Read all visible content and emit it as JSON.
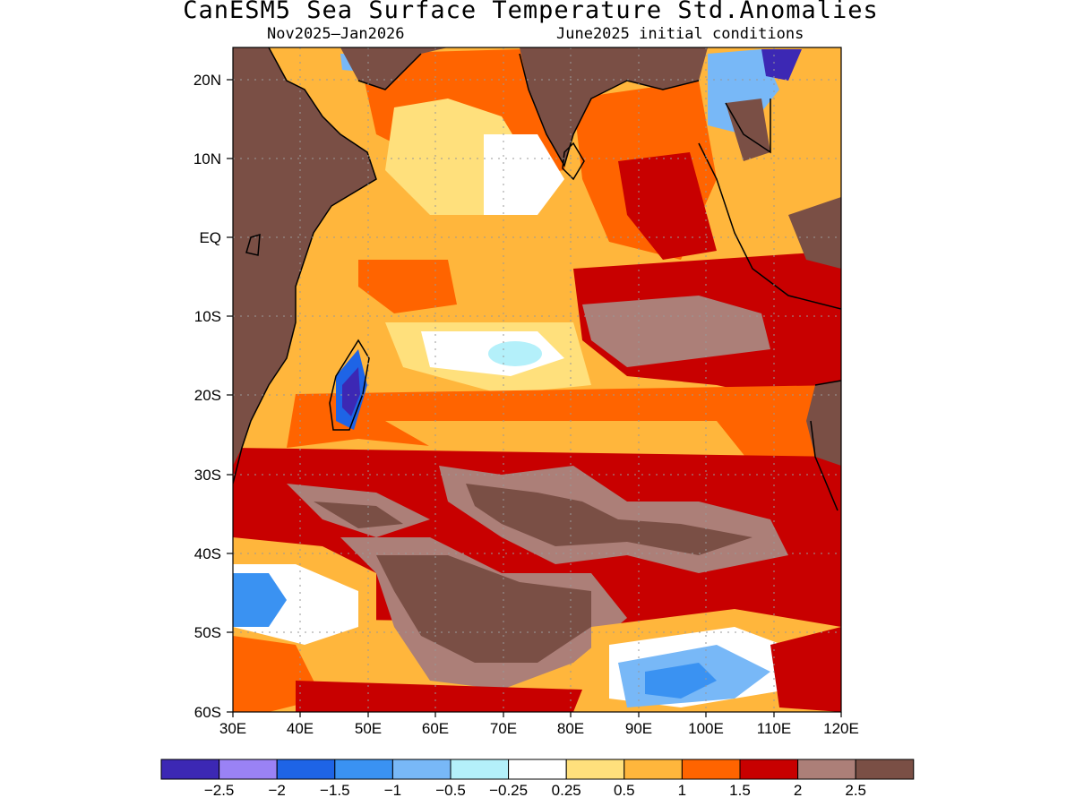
{
  "title": "CanESM5 Sea Surface Temperature Std.Anomalies",
  "subtitle_left": "Nov2025–Jan2026",
  "subtitle_right": "June2025 initial conditions",
  "axes": {
    "lat_labels": [
      "20N",
      "10N",
      "EQ",
      "10S",
      "20S",
      "30S",
      "40S",
      "50S",
      "60S"
    ],
    "lon_labels": [
      "30E",
      "40E",
      "50E",
      "60E",
      "70E",
      "80E",
      "90E",
      "100E",
      "110E",
      "120E"
    ]
  },
  "colorbar": {
    "colors": [
      "#3c28b4",
      "#9a82f5",
      "#1e64e6",
      "#3a92f2",
      "#78b8f7",
      "#b4f0fa",
      "#ffffff",
      "#ffe07c",
      "#ffb63c",
      "#ff6400",
      "#c80000",
      "#ac7f78",
      "#7a4f45"
    ],
    "labels": [
      "−2.5",
      "−2",
      "−1.5",
      "−1",
      "−0.5",
      "−0.25",
      "0.25",
      "0.5",
      "1",
      "1.5",
      "2",
      "2.5"
    ]
  },
  "map": {
    "region": "Indian Ocean",
    "lon_range": [
      30,
      120
    ],
    "lat_range": [
      -60,
      24
    ]
  }
}
